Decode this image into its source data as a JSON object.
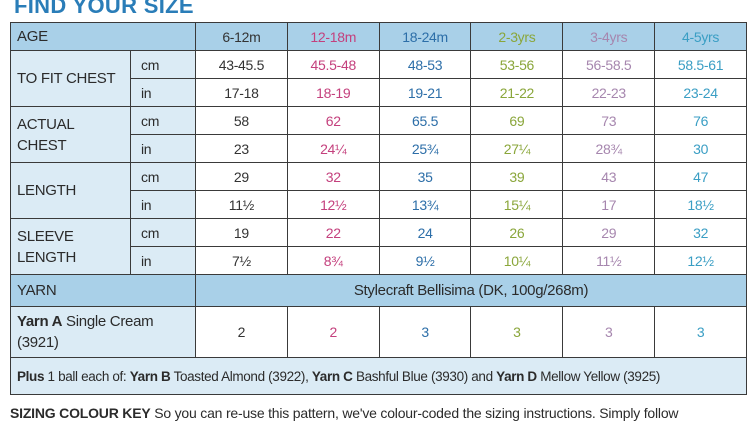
{
  "title": "FIND YOUR SIZE",
  "table": {
    "header": {
      "label": "AGE",
      "sizes": [
        "6-12m",
        "12-18m",
        "18-24m",
        "2-3yrs",
        "3-4yrs",
        "4-5yrs"
      ]
    },
    "measurements": [
      {
        "label": "TO FIT CHEST",
        "rows": [
          {
            "unit": "cm",
            "values": [
              "43-45.5",
              "45.5-48",
              "48-53",
              "53-56",
              "56-58.5",
              "58.5-61"
            ]
          },
          {
            "unit": "in",
            "values": [
              "17-18",
              "18-19",
              "19-21",
              "21-22",
              "22-23",
              "23-24"
            ]
          }
        ]
      },
      {
        "label": "ACTUAL CHEST",
        "rows": [
          {
            "unit": "cm",
            "values": [
              "58",
              "62",
              "65.5",
              "69",
              "73",
              "76"
            ]
          },
          {
            "unit": "in",
            "values": [
              "23",
              "24¼",
              "25¾",
              "27¼",
              "28¾",
              "30"
            ]
          }
        ]
      },
      {
        "label": "LENGTH",
        "rows": [
          {
            "unit": "cm",
            "values": [
              "29",
              "32",
              "35",
              "39",
              "43",
              "47"
            ]
          },
          {
            "unit": "in",
            "values": [
              "11½",
              "12½",
              "13¾",
              "15¼",
              "17",
              "18½"
            ]
          }
        ]
      },
      {
        "label": "SLEEVE LENGTH",
        "rows": [
          {
            "unit": "cm",
            "values": [
              "19",
              "22",
              "24",
              "26",
              "29",
              "32"
            ]
          },
          {
            "unit": "in",
            "values": [
              "7½",
              "8¾",
              "9½",
              "10¼",
              "11½",
              "12½"
            ]
          }
        ]
      }
    ],
    "yarn": {
      "label": "YARN",
      "value": "Stylecraft Bellisima (DK, 100g/268m)"
    },
    "yarn_a": {
      "name": "Yarn A",
      "shade": "Single Cream (3921)",
      "values": [
        "2",
        "2",
        "3",
        "3",
        "3",
        "3"
      ]
    },
    "plus_note": [
      {
        "text": "Plus",
        "bold": true
      },
      {
        "text": " 1 ball each of: "
      },
      {
        "text": "Yarn B",
        "bold": true
      },
      {
        "text": " Toasted Almond (3922), "
      },
      {
        "text": "Yarn C",
        "bold": true
      },
      {
        "text": " Bashful Blue (3930) and "
      },
      {
        "text": "Yarn D",
        "bold": true
      },
      {
        "text": " Mellow Yellow (3925)"
      }
    ]
  },
  "footer": {
    "heading": "SIZING COLOUR KEY",
    "text": "So you can re-use this pattern, we've colour-coded the sizing instructions. Simply follow"
  }
}
